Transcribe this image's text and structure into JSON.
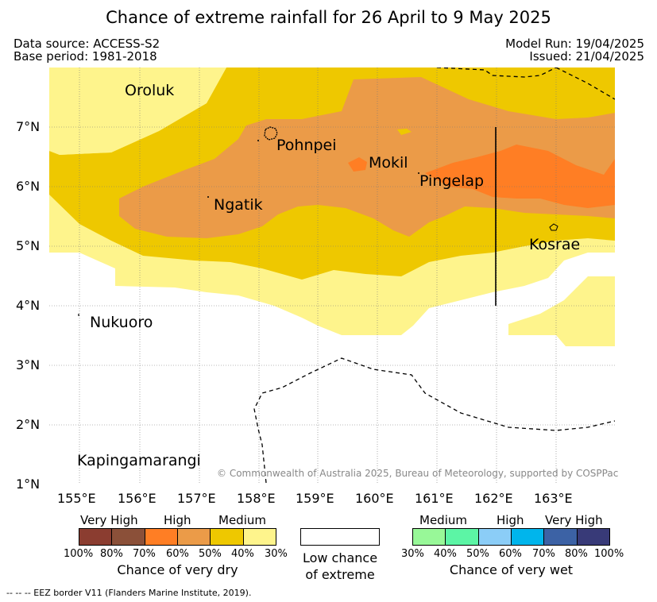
{
  "title": "Chance of extreme rainfall for 26 April to 9 May 2025",
  "meta": {
    "source": "Data source: ACCESS-S2",
    "base_period": "Base period: 1981-2018",
    "model_run": "Model Run: 19/04/2025",
    "issued": "Issued: 21/04/2025"
  },
  "map": {
    "lat_labels": [
      "7°N",
      "6°N",
      "5°N",
      "4°N",
      "3°N",
      "2°N",
      "1°N"
    ],
    "lon_labels": [
      "155°E",
      "156°E",
      "157°E",
      "158°E",
      "159°E",
      "160°E",
      "161°E",
      "162°E",
      "163°E"
    ],
    "places": {
      "oroluk": "Oroluk",
      "pohnpei": "Pohnpei",
      "mokil": "Mokil",
      "pingelap": "Pingelap",
      "ngatik": "Ngatik",
      "kosrae": "Kosrae",
      "nukuoro": "Nukuoro",
      "kapingamarangi": "Kapingamarangi"
    },
    "copyright": "© Commonwealth of Australia 2025, Bureau of Meteorology, supported by COSPPac",
    "colors": {
      "dry_30": "#fef48c",
      "dry_40": "#eec800",
      "dry_50": "#eb9b48",
      "dry_60": "#ff7e24"
    }
  },
  "legend": {
    "dry": {
      "categories": [
        "Very High",
        "High",
        "Medium"
      ],
      "ticks": [
        "100%",
        "80%",
        "70%",
        "60%",
        "50%",
        "40%",
        "30%"
      ],
      "colors": [
        "#8b3d30",
        "#8b5039",
        "#ff7e24",
        "#eb9b48",
        "#eec800",
        "#fef48c"
      ],
      "title": "Chance of very dry"
    },
    "low": {
      "line1": "Low chance",
      "line2": "of extreme"
    },
    "wet": {
      "categories": [
        "Medium",
        "High",
        "Very High"
      ],
      "ticks": [
        "30%",
        "40%",
        "50%",
        "60%",
        "70%",
        "80%",
        "100%"
      ],
      "colors": [
        "#98f898",
        "#5cf5a5",
        "#8bcdf7",
        "#00b5ec",
        "#3c62a5",
        "#383a78"
      ],
      "title": "Chance of very wet"
    }
  },
  "footer": "--  --  -- EEZ border V11 (Flanders Marine Institute, 2019)."
}
